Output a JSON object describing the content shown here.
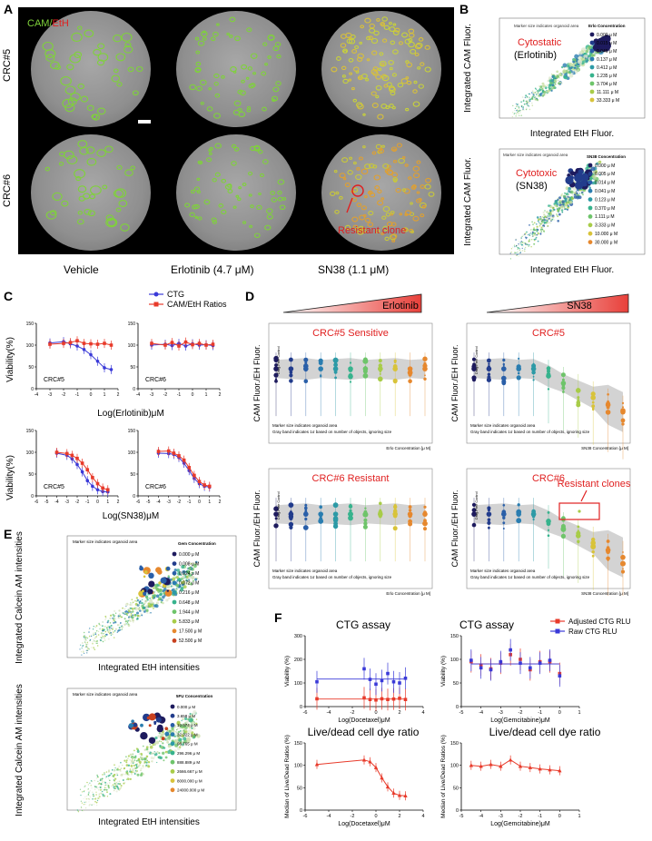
{
  "panel_labels": {
    "a": "A",
    "b": "B",
    "c": "C",
    "d": "D",
    "e": "E",
    "f": "F"
  },
  "panel_a": {
    "stain_label_cam": "CAM/",
    "stain_label_eth": "EtH",
    "rows": [
      "CRC#5",
      "CRC#6"
    ],
    "columns": [
      "Vehicle",
      "Erlotinib (4.7 μM)",
      "SN38 (1.1 μM)"
    ],
    "annotation": "Resistant clone",
    "colors": {
      "cam": "#7fd23a",
      "eth": "#e02020",
      "dish": "#9a9a9a"
    }
  },
  "panel_b": {
    "top": {
      "note": "Marker size indicates organoid area",
      "legend_title": "Erlo Concentration",
      "legend_items": [
        "0.000 μ M",
        "0.015 μ M",
        "0.046 μ M",
        "0.137 μ M",
        "0.412 μ M",
        "1.235 μ M",
        "3.704 μ M",
        "11.111 μ M",
        "33.333 μ M"
      ],
      "label_red": "Cytostatic",
      "label_black": "(Erlotinib)",
      "xlabel": "Integrated EtH Fluor.",
      "ylabel": "Integrated CAM Fluor."
    },
    "bottom": {
      "note": "Marker size indicates organoid area",
      "legend_title": "SN38 Concentration",
      "legend_items": [
        "0.000 μ M",
        "0.005 μ M",
        "0.014 μ M",
        "0.041 μ M",
        "0.123 μ M",
        "0.370 μ M",
        "1.111 μ M",
        "3.333 μ M",
        "10.000 μ M",
        "30.000 μ M"
      ],
      "label_red": "Cytotoxic",
      "label_black": "(SN38)",
      "xlabel": "Integrated EtH Fluor.",
      "ylabel": "Integrated CAM Fluor."
    }
  },
  "panel_c": {
    "legend": [
      "CTG",
      "CAM/EtH Ratios"
    ],
    "ylabel": "Viability(%)",
    "xlabel_top": "Log(Erlotinib)μM",
    "xlabel_bottom": "Log(SN38)μM",
    "sub_labels": [
      "CRC#5",
      "CRC#6",
      "CRC#5",
      "CRC#6"
    ],
    "colors": {
      "ctg": "#3a3ad8",
      "ratio": "#e83a2a"
    }
  },
  "panel_d": {
    "drug_left": "Erlotinib",
    "drug_right": "SN38",
    "titles": [
      "CRC#5 Sensitive",
      "CRC#5",
      "CRC#6 Resistant",
      "CRC#6"
    ],
    "ylabel": "CAM Fluor./EH Fluor.",
    "drug_free": "Drug-Free Control",
    "note1": "Marker size indicates organoid area",
    "note2": "Gray band indicates 1σ based on number of objects, ignoring size",
    "xlabel_erlo": "Erlo Concentration [μ M]",
    "xlabel_sn38": "SN38 Concentration [μ M]",
    "resistant_clones": "Resistant clones"
  },
  "panel_e": {
    "top": {
      "note": "Marker size indicates organoid area",
      "legend_title": "Gem Concentration",
      "legend_items": [
        "0.000 μ M",
        "0.008 μ M",
        "0.024 μ M",
        "0.072 μ M",
        "0.216 μ M",
        "0.648 μ M",
        "1.944 μ M",
        "5.833 μ M",
        "17.500 μ M",
        "52.500 μ M"
      ]
    },
    "bottom": {
      "note": "Marker size indicates organoid area",
      "legend_title": "5FU Concentration",
      "legend_items": [
        "0.000 μ M",
        "3.658 μ M",
        "10.974 μ M",
        "32.922 μ M",
        "98.765 μ M",
        "296.296 μ M",
        "888.889 μ M",
        "2666.667 μ M",
        "8000.000 μ M",
        "24000.000 μ M"
      ]
    },
    "ylabel": "Integrated Calcein AM intensities",
    "xlabel": "Integrated EtH intensities"
  },
  "panel_f": {
    "title_top": "CTG assay",
    "title_bottom": "Live/dead cell dye ratio",
    "ylabel_top": "Viability (%)",
    "ylabel_bottom": "Median of Live/Dead Ratios (%)",
    "xlabel_left": "Log(Docetaxel)μM",
    "xlabel_right": "Log(Gemcitabine)μM",
    "legend": [
      "Adjusted CTG RLU",
      "Raw CTG RLU"
    ],
    "colors": {
      "adjusted": "#e83a2a",
      "raw": "#3a3ad8"
    }
  },
  "chart_data": [
    {
      "type": "line",
      "panel": "C-top-left",
      "subtitle": "CRC#5",
      "xlabel": "Log(Erlotinib)μM",
      "ylabel": "Viability(%)",
      "xlim": [
        -4,
        2
      ],
      "ylim": [
        0,
        150
      ],
      "x": [
        -3,
        -2,
        -1.5,
        -1,
        -0.5,
        0,
        0.5,
        1,
        1.5
      ],
      "series": [
        {
          "name": "CTG",
          "values": [
            105,
            108,
            103,
            98,
            90,
            78,
            63,
            48,
            44
          ]
        },
        {
          "name": "CAM/EtH Ratios",
          "values": [
            102,
            104,
            106,
            110,
            104,
            103,
            102,
            104,
            100
          ]
        }
      ]
    },
    {
      "type": "line",
      "panel": "C-top-right",
      "subtitle": "CRC#6",
      "xlabel": "Log(Erlotinib)μM",
      "ylabel": "Viability(%)",
      "xlim": [
        -4,
        2
      ],
      "ylim": [
        0,
        150
      ],
      "x": [
        -3,
        -2,
        -1.5,
        -1,
        -0.5,
        0,
        0.5,
        1,
        1.5
      ],
      "series": [
        {
          "name": "CTG",
          "values": [
            100,
            102,
            99,
            104,
            98,
            103,
            100,
            101,
            99
          ]
        },
        {
          "name": "CAM/EtH Ratios",
          "values": [
            104,
            100,
            106,
            98,
            107,
            101,
            104,
            100,
            102
          ]
        }
      ]
    },
    {
      "type": "line",
      "panel": "C-bottom-left",
      "subtitle": "CRC#5",
      "xlabel": "Log(SN38)μM",
      "ylabel": "Viability(%)",
      "xlim": [
        -6,
        2
      ],
      "ylim": [
        0,
        150
      ],
      "x": [
        -4,
        -3,
        -2.5,
        -2,
        -1.5,
        -1,
        -0.5,
        0,
        0.5,
        1
      ],
      "series": [
        {
          "name": "CTG",
          "values": [
            98,
            93,
            85,
            72,
            55,
            35,
            22,
            14,
            10,
            9
          ]
        },
        {
          "name": "CAM/EtH Ratios",
          "values": [
            100,
            97,
            93,
            86,
            75,
            60,
            42,
            28,
            18,
            14
          ]
        }
      ]
    },
    {
      "type": "line",
      "panel": "C-bottom-right",
      "subtitle": "CRC#6",
      "xlabel": "Log(SN38)μM",
      "ylabel": "Viability(%)",
      "xlim": [
        -6,
        2
      ],
      "ylim": [
        0,
        150
      ],
      "x": [
        -4,
        -3,
        -2.5,
        -2,
        -1.5,
        -1,
        -0.5,
        0,
        0.5,
        1
      ],
      "series": [
        {
          "name": "CTG",
          "values": [
            98,
            97,
            95,
            88,
            75,
            58,
            40,
            28,
            22,
            20
          ]
        },
        {
          "name": "CAM/EtH Ratios",
          "values": [
            102,
            103,
            98,
            92,
            82,
            65,
            47,
            33,
            25,
            22
          ]
        }
      ]
    },
    {
      "type": "line",
      "panel": "F-top-left",
      "title": "CTG assay",
      "xlabel": "Log(Docetaxel)μM",
      "ylabel": "Viability (%)",
      "xlim": [
        -6,
        4
      ],
      "ylim": [
        0,
        300
      ],
      "x": [
        -5,
        -1,
        -0.5,
        0,
        0.5,
        1,
        1.5,
        2,
        2.5
      ],
      "series": [
        {
          "name": "Adjusted CTG RLU",
          "values": [
            33,
            37,
            30,
            28,
            33,
            30,
            32,
            35,
            30
          ]
        },
        {
          "name": "Raw CTG RLU",
          "values": [
            105,
            160,
            115,
            95,
            110,
            140,
            105,
            100,
            120
          ]
        }
      ]
    },
    {
      "type": "line",
      "panel": "F-top-right",
      "title": "CTG assay",
      "xlabel": "Log(Gemcitabine)μM",
      "ylabel": "Viability (%)",
      "xlim": [
        -5,
        1
      ],
      "ylim": [
        0,
        150
      ],
      "x": [
        -4.5,
        -4,
        -3.5,
        -3,
        -2.5,
        -2,
        -1.5,
        -1,
        -0.5,
        0
      ],
      "series": [
        {
          "name": "Adjusted CTG RLU",
          "values": [
            95,
            88,
            80,
            92,
            110,
            100,
            78,
            95,
            95,
            70
          ]
        },
        {
          "name": "Raw CTG RLU",
          "values": [
            98,
            82,
            78,
            95,
            120,
            92,
            82,
            92,
            98,
            65
          ]
        }
      ]
    },
    {
      "type": "line",
      "panel": "F-bottom-left",
      "title": "Live/dead cell dye ratio",
      "xlabel": "Log(Docetaxel)μM",
      "ylabel": "Median of Live/Dead Ratios (%)",
      "xlim": [
        -6,
        4
      ],
      "ylim": [
        0,
        150
      ],
      "x": [
        -5,
        -1,
        -0.5,
        0,
        0.5,
        1,
        1.5,
        2,
        2.5
      ],
      "series": [
        {
          "name": "Live/Dead Ratio",
          "values": [
            102,
            112,
            108,
            95,
            72,
            52,
            38,
            33,
            32
          ]
        }
      ]
    },
    {
      "type": "line",
      "panel": "F-bottom-right",
      "title": "Live/dead cell dye ratio",
      "xlabel": "Log(Gemcitabine)μM",
      "ylabel": "Median of Live/Dead Ratios (%)",
      "xlim": [
        -5,
        1
      ],
      "ylim": [
        0,
        150
      ],
      "x": [
        -4.5,
        -4,
        -3.5,
        -3,
        -2.5,
        -2,
        -1.5,
        -1,
        -0.5,
        0
      ],
      "series": [
        {
          "name": "Live/Dead Ratio",
          "values": [
            100,
            98,
            102,
            98,
            112,
            98,
            95,
            92,
            90,
            88
          ]
        }
      ]
    }
  ]
}
